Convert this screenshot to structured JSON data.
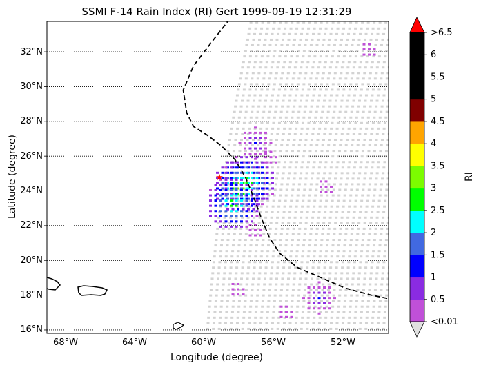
{
  "title": "SSMI F-14 Rain Index (RI) Gert 1999-09-19 12:31:29",
  "xlabel": "Longitude (degree)",
  "ylabel": "Latitude (degree)",
  "colorbar_label": "RI",
  "x_ticks": [
    "68°W",
    "64°W",
    "60°W",
    "56°W",
    "52°W"
  ],
  "y_ticks": [
    "16°N",
    "18°N",
    "20°N",
    "22°N",
    "24°N",
    "26°N",
    "28°N",
    "30°N",
    "32°N"
  ],
  "colorbar": {
    "tick_labels": [
      "<0.01",
      "0.5",
      "1",
      "1.5",
      "2",
      "2.5",
      "3",
      "3.5",
      "4",
      "4.5",
      "5",
      "5.5",
      "6",
      ">6.5"
    ],
    "bins": [
      {
        "color": "#c050d8"
      },
      {
        "color": "#8a2be2"
      },
      {
        "color": "#0000ff"
      },
      {
        "color": "#4169e1"
      },
      {
        "color": "#00ffff"
      },
      {
        "color": "#00ff00"
      },
      {
        "color": "#7cfc00"
      },
      {
        "color": "#ffff00"
      },
      {
        "color": "#ffa500"
      },
      {
        "color": "#800000"
      },
      {
        "color": "#000000"
      },
      {
        "color": "#000000"
      },
      {
        "color": "#000000"
      }
    ],
    "under_color": "#e0e0e0",
    "over_color": "#ff0000"
  },
  "chart_data": {
    "type": "map",
    "title": "SSMI F-14 Rain Index (RI) Gert 1999-09-19 12:31:29",
    "xlabel": "Longitude (degree)",
    "ylabel": "Latitude (degree)",
    "xlim": [
      -69.1,
      -49.3
    ],
    "ylim": [
      15.8,
      33.75
    ],
    "storm_center": {
      "lon": -59.1,
      "lat": 24.75
    },
    "track": [
      [
        -58.5,
        33.9
      ],
      [
        -59.6,
        32.5
      ],
      [
        -60.6,
        31.2
      ],
      [
        -61.2,
        29.8
      ],
      [
        -61.0,
        28.5
      ],
      [
        -60.6,
        27.7
      ],
      [
        -59.8,
        27.2
      ],
      [
        -59.0,
        26.6
      ],
      [
        -58.2,
        25.8
      ],
      [
        -57.6,
        24.8
      ],
      [
        -57.1,
        23.6
      ],
      [
        -56.7,
        22.5
      ],
      [
        -56.2,
        21.3
      ],
      [
        -55.6,
        20.4
      ],
      [
        -54.6,
        19.6
      ],
      [
        -53.2,
        19.0
      ],
      [
        -51.8,
        18.4
      ],
      [
        -50.3,
        18.0
      ],
      [
        -49.3,
        17.8
      ]
    ],
    "rain_blobs": [
      {
        "lon": -58.0,
        "lat": 24.3,
        "ri": 3.0
      },
      {
        "lon": -57.5,
        "lat": 24.6,
        "ri": 2.5
      },
      {
        "lon": -58.4,
        "lat": 23.3,
        "ri": 2.5
      },
      {
        "lon": -57.1,
        "lat": 26.8,
        "ri": 1.0
      },
      {
        "lon": -56.3,
        "lat": 25.9,
        "ri": 0.5
      },
      {
        "lon": -57.2,
        "lat": 21.7,
        "ri": 0.5
      },
      {
        "lon": -58.2,
        "lat": 18.3,
        "ri": 0.5
      },
      {
        "lon": -55.4,
        "lat": 17.0,
        "ri": 0.5
      },
      {
        "lon": -53.4,
        "lat": 17.9,
        "ri": 1.0
      },
      {
        "lon": -53.1,
        "lat": 24.2,
        "ri": 0.5
      },
      {
        "lon": -50.6,
        "lat": 32.1,
        "ri": 0.5
      }
    ]
  }
}
